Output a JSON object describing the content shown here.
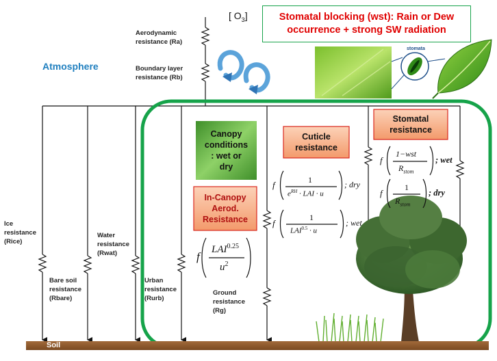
{
  "atmosphere": "Atmosphere",
  "ozone": "[ O3]",
  "ozone_base": "[ O",
  "ozone_sub": "3",
  "ozone_end": "]",
  "aerodynamic": [
    "Aerodynamic",
    "resistance (Ra)"
  ],
  "boundary": [
    "Boundary layer",
    "resistance (Rb)"
  ],
  "blocking_box": [
    "Stomatal blocking (wst): Rain or Dew",
    "occurrence + strong SW radiation"
  ],
  "stomata_label": "stomata",
  "canopy_box": [
    "Canopy",
    "conditions",
    ": wet or",
    "dry"
  ],
  "cuticle_box": [
    "Cuticle",
    "resistance"
  ],
  "stomatal_box": [
    "Stomatal",
    "resistance"
  ],
  "incanopy_box": [
    "In-Canopy",
    "Aerod.",
    "Resistance"
  ],
  "ice": [
    "Ice",
    "resistance",
    "(Rice)"
  ],
  "water": [
    "Water",
    "resistance",
    "(Rwat)"
  ],
  "bare": [
    "Bare soil",
    "resistance",
    "(Rbare)"
  ],
  "urban": [
    "Urban",
    "resistance",
    "(Rurb)"
  ],
  "ground": [
    "Ground",
    "resistance",
    "(Rg)"
  ],
  "soil": "Soil",
  "formulas": {
    "cuticle_dry_suffix": "; dry",
    "cuticle_wet_suffix": "; wet",
    "stom_wet_suffix": "; wet",
    "stom_dry_suffix": "; dry"
  },
  "colors": {
    "green_frame": "#16a34a",
    "red_text": "#e00000",
    "atmosphere_blue": "#1f7fbf",
    "salmon_box": "#f6a27a",
    "soil_brown": "#8b5a2b"
  }
}
